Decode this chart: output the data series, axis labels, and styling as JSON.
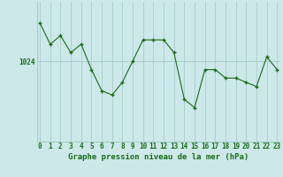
{
  "hours": [
    0,
    1,
    2,
    3,
    4,
    5,
    6,
    7,
    8,
    9,
    10,
    11,
    12,
    13,
    14,
    15,
    16,
    17,
    18,
    19,
    20,
    21,
    22,
    23
  ],
  "pressure": [
    1033,
    1028,
    1030,
    1026,
    1028,
    1022,
    1017,
    1016,
    1019,
    1024,
    1029,
    1029,
    1029,
    1026,
    1015,
    1013,
    1022,
    1022,
    1020,
    1020,
    1019,
    1018,
    1025,
    1022
  ],
  "line_color": "#1a6b1a",
  "marker_color": "#1a6b1a",
  "bg_color": "#cce8e8",
  "grid_color": "#aacccc",
  "ytick_label": "1024",
  "ytick_value": 1024,
  "xlabel": "Graphe pression niveau de la mer (hPa)",
  "xlabel_fontsize": 6.5,
  "tick_fontsize": 5.5,
  "ylim_min": 1005,
  "ylim_max": 1038
}
